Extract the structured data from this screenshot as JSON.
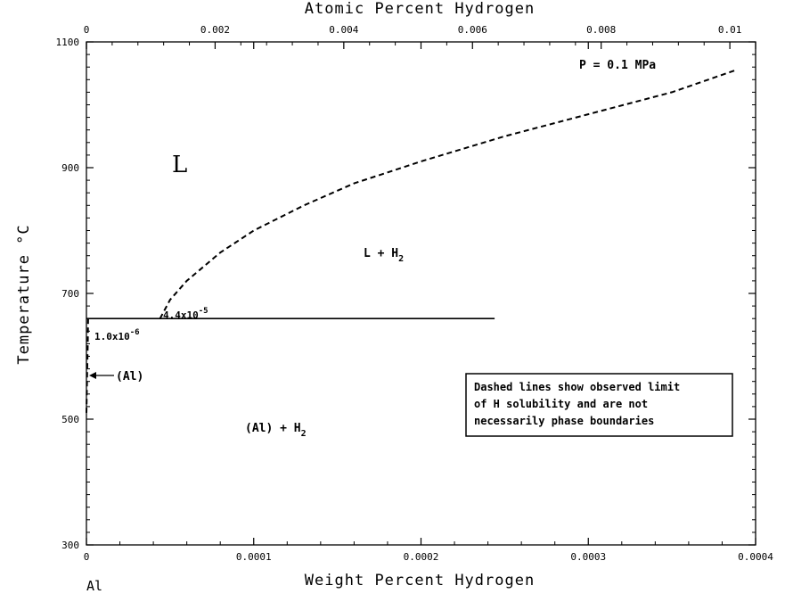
{
  "chart_data": {
    "type": "line",
    "title": "",
    "top_axis_label": "Atomic Percent Hydrogen",
    "xlabel": "Weight Percent Hydrogen",
    "ylabel": "Temperature °C",
    "xlim": [
      0,
      0.0004
    ],
    "ylim": [
      300,
      1100
    ],
    "top_xlim": [
      0,
      0.0104
    ],
    "x_ticks": [
      0,
      0.0001,
      0.0002,
      0.0003,
      0.0004
    ],
    "x_tick_labels": [
      "0",
      "0.0001",
      "0.0002",
      "0.0003",
      "0.0004"
    ],
    "top_ticks": [
      0,
      0.002,
      0.004,
      0.006,
      0.008,
      0.01
    ],
    "top_tick_labels": [
      "0",
      "0.002",
      "0.004",
      "0.006",
      "0.008",
      "0.01"
    ],
    "y_ticks": [
      300,
      500,
      700,
      900,
      1100
    ],
    "y_tick_labels": [
      "300",
      "500",
      "700",
      "900",
      "1100"
    ],
    "element_label": "Al",
    "series": [
      {
        "style": "dashed",
        "x": [
          4.4e-05,
          5e-05,
          6e-05,
          8e-05,
          0.0001,
          0.00013,
          0.00016,
          0.0002,
          0.00025,
          0.0003,
          0.00035,
          0.000388
        ],
        "y": [
          660,
          690,
          720,
          765,
          800,
          840,
          875,
          910,
          950,
          985,
          1020,
          1055
        ]
      },
      {
        "style": "solid",
        "x": [
          0,
          0.000244
        ],
        "y": [
          660,
          660
        ]
      },
      {
        "style": "dashed",
        "x": [
          1e-06,
          8e-07,
          5e-07,
          2e-07,
          0
        ],
        "y": [
          660,
          620,
          580,
          540,
          510
        ]
      }
    ],
    "annotations": {
      "pressure": "P = 0.1 MPa",
      "liquid": "L",
      "liquid_gas": "L + H",
      "liquid_gas_sub": "2",
      "solid_gas": "(Al) + H",
      "solid_gas_sub": "2",
      "solid": "(Al)",
      "sol_liquid_base": "4.4x10",
      "sol_liquid_exp": "-5",
      "sol_solid_base": "1.0x10",
      "sol_solid_exp": "-6",
      "note": [
        "Dashed lines show observed limit",
        "of H solubility and are not",
        "necessarily phase boundaries"
      ]
    }
  }
}
